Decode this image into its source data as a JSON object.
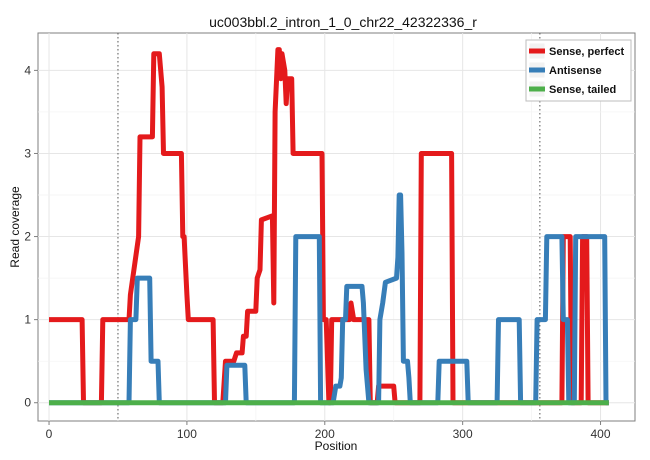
{
  "chart_data": {
    "type": "line",
    "title": "uc003bbl.2_intron_1_0_chr22_42322336_r",
    "xlabel": "Position",
    "ylabel": "Read coverage",
    "xlim": [
      -8,
      425
    ],
    "ylim": [
      -0.22,
      4.45
    ],
    "xticks": [
      0,
      100,
      200,
      300,
      400
    ],
    "yticks": [
      0,
      1,
      2,
      3,
      4
    ],
    "grid": true,
    "legend_position": "top-right",
    "vlines": [
      50,
      356
    ],
    "series": [
      {
        "name": "Sense, perfect",
        "color": "#e41a1c",
        "points": [
          [
            0,
            1
          ],
          [
            24,
            1
          ],
          [
            25,
            0
          ],
          [
            38,
            0
          ],
          [
            39,
            1
          ],
          [
            58,
            1
          ],
          [
            59,
            1.3
          ],
          [
            65,
            2
          ],
          [
            66,
            3.2
          ],
          [
            75,
            3.2
          ],
          [
            76,
            4.2
          ],
          [
            80,
            4.2
          ],
          [
            82,
            3.8
          ],
          [
            83,
            3
          ],
          [
            96,
            3
          ],
          [
            97,
            2
          ],
          [
            98,
            2
          ],
          [
            100,
            1.3
          ],
          [
            101,
            1
          ],
          [
            119,
            1
          ],
          [
            120,
            0
          ],
          [
            126,
            0
          ],
          [
            128,
            0.5
          ],
          [
            134,
            0.5
          ],
          [
            136,
            0.6
          ],
          [
            140,
            0.6
          ],
          [
            141,
            0.8
          ],
          [
            143,
            0.8
          ],
          [
            144,
            1.1
          ],
          [
            150,
            1.1
          ],
          [
            151,
            1.5
          ],
          [
            153,
            1.6
          ],
          [
            154,
            2.2
          ],
          [
            162,
            2.25
          ],
          [
            163,
            1.2
          ],
          [
            164,
            3.5
          ],
          [
            166,
            4.25
          ],
          [
            167,
            4.25
          ],
          [
            168,
            3.9
          ],
          [
            169,
            4.2
          ],
          [
            171,
            4
          ],
          [
            172,
            3.6
          ],
          [
            173,
            3.9
          ],
          [
            176,
            3.9
          ],
          [
            177,
            3
          ],
          [
            198,
            3
          ],
          [
            199,
            1
          ],
          [
            201,
            1
          ],
          [
            203,
            0
          ],
          [
            204,
            0
          ],
          [
            205,
            1
          ],
          [
            218,
            1
          ],
          [
            219,
            1.2
          ],
          [
            221,
            1
          ],
          [
            232,
            1
          ],
          [
            233,
            0
          ],
          [
            238,
            0
          ],
          [
            239,
            0.2
          ],
          [
            250,
            0.2
          ],
          [
            251,
            0
          ],
          [
            269,
            0
          ],
          [
            270,
            3
          ],
          [
            292,
            3
          ],
          [
            293,
            0
          ],
          [
            372,
            0
          ],
          [
            373,
            2
          ],
          [
            378,
            2
          ],
          [
            379,
            0
          ],
          [
            386,
            0
          ],
          [
            387,
            2
          ],
          [
            390,
            2
          ],
          [
            391,
            0
          ],
          [
            406,
            0
          ]
        ]
      },
      {
        "name": "Antisense",
        "color": "#377eb8",
        "points": [
          [
            0,
            0
          ],
          [
            58,
            0
          ],
          [
            59,
            1
          ],
          [
            63,
            1
          ],
          [
            64,
            1.5
          ],
          [
            73,
            1.5
          ],
          [
            74,
            0.5
          ],
          [
            79,
            0.5
          ],
          [
            80,
            0
          ],
          [
            128,
            0
          ],
          [
            129,
            0.45
          ],
          [
            142,
            0.45
          ],
          [
            143,
            0
          ],
          [
            178,
            0
          ],
          [
            179,
            2
          ],
          [
            196,
            2
          ],
          [
            197,
            0
          ],
          [
            206,
            0
          ],
          [
            208,
            0.2
          ],
          [
            211,
            0.2
          ],
          [
            212,
            0.3
          ],
          [
            213,
            1
          ],
          [
            215,
            1
          ],
          [
            216,
            1.4
          ],
          [
            227,
            1.4
          ],
          [
            228,
            1.2
          ],
          [
            230,
            0.4
          ],
          [
            232,
            0
          ],
          [
            239,
            0
          ],
          [
            240,
            1
          ],
          [
            242,
            1.2
          ],
          [
            244,
            1.45
          ],
          [
            252,
            1.5
          ],
          [
            253,
            1.75
          ],
          [
            254,
            2.5
          ],
          [
            255,
            2.5
          ],
          [
            256,
            1.8
          ],
          [
            257,
            0.5
          ],
          [
            260,
            0.5
          ],
          [
            261,
            0.3
          ],
          [
            262,
            0
          ],
          [
            282,
            0
          ],
          [
            283,
            0.5
          ],
          [
            303,
            0.5
          ],
          [
            304,
            0
          ],
          [
            325,
            0
          ],
          [
            326,
            1
          ],
          [
            341,
            1
          ],
          [
            342,
            0
          ],
          [
            353,
            0
          ],
          [
            354,
            1
          ],
          [
            360,
            1
          ],
          [
            361,
            2
          ],
          [
            372,
            2
          ],
          [
            373,
            1
          ],
          [
            376,
            1
          ],
          [
            377,
            0
          ],
          [
            381,
            0
          ],
          [
            382,
            2
          ],
          [
            403,
            2
          ],
          [
            404,
            0
          ],
          [
            406,
            0
          ]
        ]
      },
      {
        "name": "Sense, tailed",
        "color": "#4daf4a",
        "points": [
          [
            0,
            0
          ],
          [
            406,
            0
          ]
        ]
      }
    ]
  }
}
